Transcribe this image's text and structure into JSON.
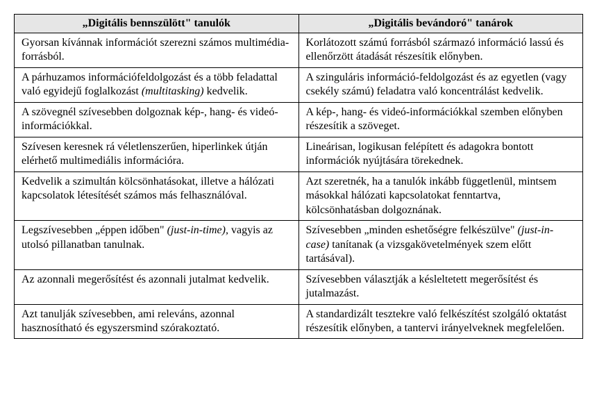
{
  "table": {
    "type": "table",
    "header_bg": "#e6e6e6",
    "border_color": "#000000",
    "text_color": "#000000",
    "font_family": "Times New Roman",
    "font_size_pt": 12,
    "columns": [
      {
        "label": "„Digitális bennszülött\" tanulók",
        "width_pct": 50,
        "align": "center"
      },
      {
        "label": "„Digitális bevándoró\" tanárok",
        "width_pct": 50,
        "align": "center"
      }
    ],
    "rows": [
      {
        "l_pre": "Gyorsan kívánnak információt szerezni számos multimédia-forrásból.",
        "l_it": "",
        "l_post": "",
        "r_pre": "Korlátozott számú forrásból származó információ lassú és ellenőrzött átadását részesítik előnyben.",
        "r_it": "",
        "r_post": ""
      },
      {
        "l_pre": "A párhuzamos információfeldolgozást és a több feladattal való egyidejű foglalkozást ",
        "l_it": "(multitasking)",
        "l_post": " kedvelik.",
        "r_pre": "A szinguláris információ-feldolgozást és az egyetlen (vagy csekély számú) feladatra való koncentrálást kedvelik.",
        "r_it": "",
        "r_post": ""
      },
      {
        "l_pre": "A szövegnél szívesebben dolgoznak kép-, hang- és videó-információkkal.",
        "l_it": "",
        "l_post": "",
        "r_pre": "A kép-, hang- és videó-információkkal szemben előnyben részesítik a szöveget.",
        "r_it": "",
        "r_post": ""
      },
      {
        "l_pre": "Szívesen keresnek rá véletlenszerűen, hiperlinkek útján elérhető multimediális infor­mációra.",
        "l_it": "",
        "l_post": "",
        "r_pre": "Lineárisan, logikusan felépített és adagokra bon­tott információk nyújtására törekednek.",
        "r_it": "",
        "r_post": ""
      },
      {
        "l_pre": "Kedvelik a szimultán kölcsönhatásokat, illetve a hálózati kapcsolatok létesítését számos más fel­használóval.",
        "l_it": "",
        "l_post": "",
        "r_pre": "Azt szeretnék, ha a tanulók inkább függetlenül, mintsem másokkal hálózati kapcsolatokat fenn­tartva, kölcsönhatásban dolgoznának.",
        "r_it": "",
        "r_post": ""
      },
      {
        "l_pre": "Legszívesebben „éppen időben\" ",
        "l_it": "(just-in-time),",
        "l_post": " vagyis az utolsó pillanatban tanulnak.",
        "r_pre": "Szívesebben „minden eshetőségre felkészülve\" ",
        "r_it": "(just-in-case)",
        "r_post": " tanítanak (a vizsgakövetelmények szem előtt tartásával)."
      },
      {
        "l_pre": "Az azonnali megerősítést és azonnali jutalmat kedvelik.",
        "l_it": "",
        "l_post": "",
        "r_pre": "Szívesebben választják a késleltetett megerősí­tést és jutalmazást.",
        "r_it": "",
        "r_post": ""
      },
      {
        "l_pre": "Azt tanulják szívesebben, ami releváns, azonnal hasznosítható és egyszersmind szórakoztató.",
        "l_it": "",
        "l_post": "",
        "r_pre": "A standardizált tesztekre való felkészítést szol­gáló oktatást részesítik előnyben, a tantervi irányelveknek megfelelően.",
        "r_it": "",
        "r_post": ""
      }
    ]
  }
}
